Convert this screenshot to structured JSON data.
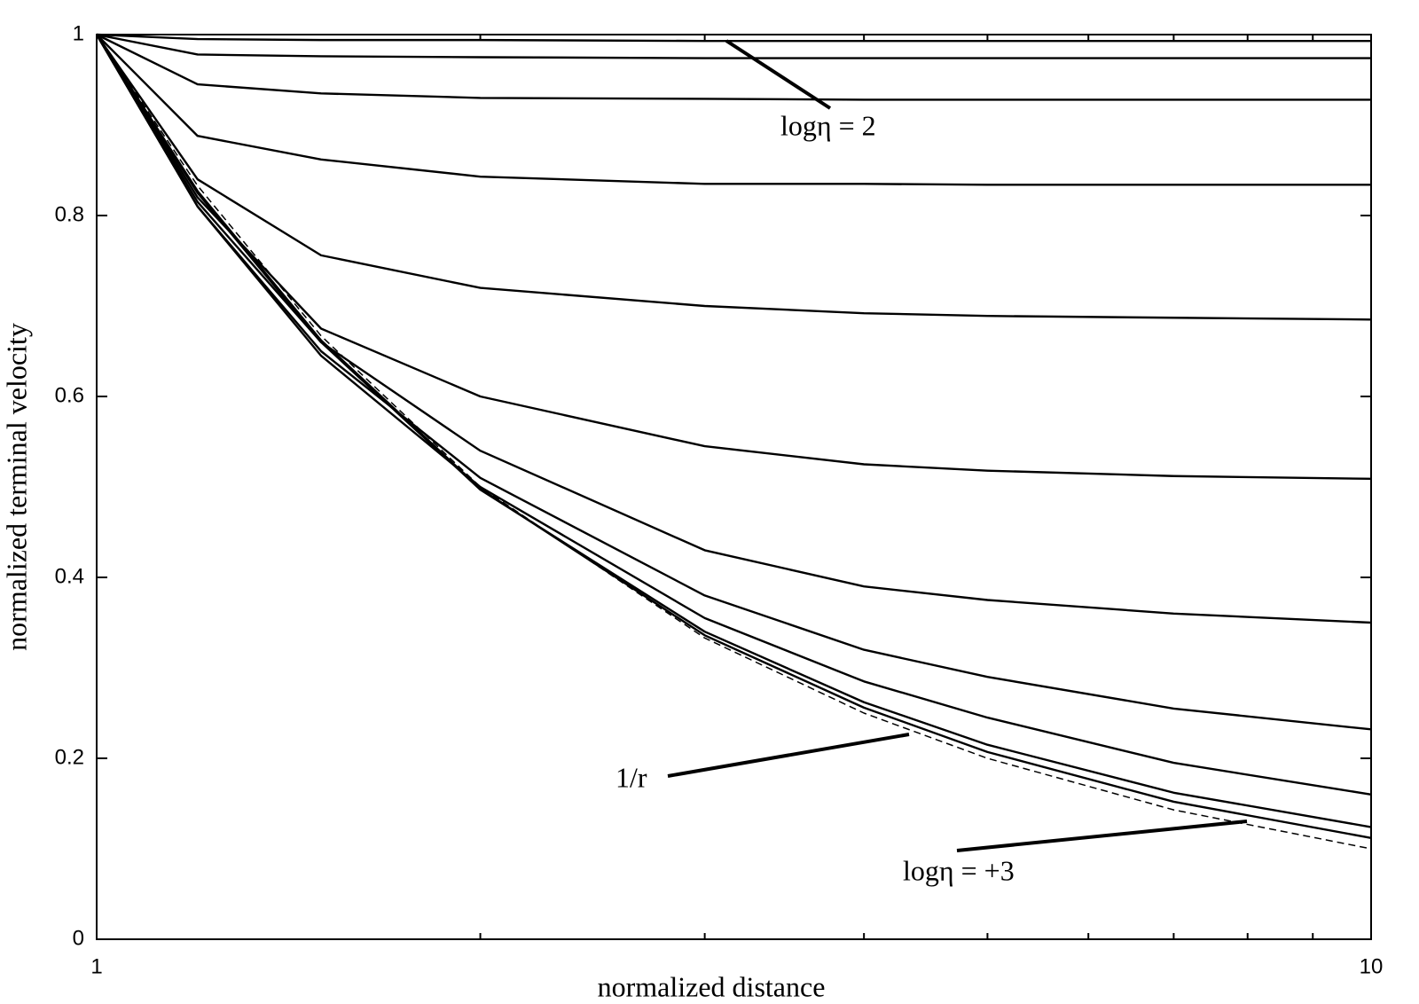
{
  "chart_data": {
    "type": "line",
    "x_label": "normalized distance",
    "y_label": "normalized terminal velocity",
    "x": [
      1,
      1.2,
      1.5,
      2,
      3,
      4,
      5,
      7,
      10
    ],
    "xscale": "log",
    "xlim": [
      1,
      10
    ],
    "xticks": [
      1,
      10
    ],
    "xminor_ticks": [
      2,
      3,
      4,
      5,
      6,
      7,
      8,
      9
    ],
    "ylim": [
      0,
      1
    ],
    "yticks": [
      0,
      0.2,
      0.4,
      0.6,
      0.8,
      1
    ],
    "grid": false,
    "series": [
      {
        "color": "#000000",
        "style": "solid",
        "values": [
          1,
          0.995,
          0.994,
          0.994,
          0.993,
          0.993,
          0.993,
          0.993,
          0.993
        ]
      },
      {
        "color": "#000000",
        "style": "solid",
        "values": [
          1,
          0.978,
          0.976,
          0.975,
          0.974,
          0.974,
          0.974,
          0.974,
          0.974
        ]
      },
      {
        "color": "#000000",
        "style": "solid",
        "values": [
          1,
          0.945,
          0.935,
          0.93,
          0.929,
          0.928,
          0.928,
          0.928,
          0.928
        ]
      },
      {
        "color": "#000000",
        "style": "solid",
        "values": [
          1,
          0.888,
          0.862,
          0.843,
          0.835,
          0.835,
          0.834,
          0.834,
          0.834
        ]
      },
      {
        "color": "#000000",
        "style": "solid",
        "values": [
          1,
          0.84,
          0.756,
          0.72,
          0.7,
          0.692,
          0.689,
          0.687,
          0.685
        ]
      },
      {
        "color": "#000000",
        "style": "solid",
        "values": [
          1,
          0.82,
          0.675,
          0.6,
          0.545,
          0.525,
          0.518,
          0.512,
          0.509
        ]
      },
      {
        "color": "#000000",
        "style": "solid",
        "values": [
          1,
          0.815,
          0.66,
          0.54,
          0.43,
          0.39,
          0.375,
          0.36,
          0.35
        ]
      },
      {
        "color": "#000000",
        "style": "solid",
        "values": [
          1,
          0.81,
          0.65,
          0.51,
          0.38,
          0.32,
          0.29,
          0.255,
          0.232
        ]
      },
      {
        "color": "#000000",
        "style": "solid",
        "values": [
          1,
          0.81,
          0.645,
          0.5,
          0.355,
          0.285,
          0.245,
          0.195,
          0.16
        ]
      },
      {
        "color": "#000000",
        "style": "solid",
        "values": [
          1,
          0.825,
          0.66,
          0.497,
          0.34,
          0.262,
          0.215,
          0.162,
          0.124
        ]
      },
      {
        "color": "#000000",
        "style": "solid",
        "values": [
          1,
          0.827,
          0.662,
          0.498,
          0.336,
          0.256,
          0.207,
          0.152,
          0.112
        ]
      },
      {
        "color": "#000000",
        "style": "dashed",
        "values": [
          1,
          0.833,
          0.667,
          0.5,
          0.333,
          0.25,
          0.2,
          0.143,
          0.1
        ]
      }
    ],
    "annotations": [
      "logη = 2",
      "1/r",
      "logη = +3"
    ]
  }
}
